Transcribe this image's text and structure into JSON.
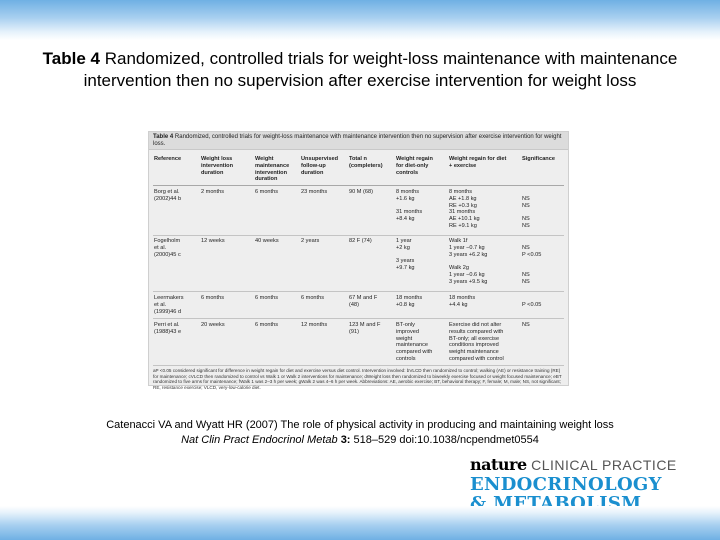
{
  "slide": {
    "title_label": "Table 4",
    "title_text": "Randomized, controlled trials for weight-loss maintenance with maintenance intervention then no supervision after exercise intervention for weight loss"
  },
  "table": {
    "caption_label": "Table 4",
    "caption_text": "Randomized, controlled trials for weight-loss maintenance with maintenance intervention then no supervision after exercise intervention for weight loss.",
    "headers": [
      "Reference",
      "Weight loss\nintervention\nduration",
      "Weight\nmaintenance\nintervention\nduration",
      "Unsupervised\nfollow-up\nduration",
      "Total n\n(completers)",
      "Weight regain\nfor diet-only\ncontrols",
      "Weight regain for diet\n+ exercise",
      "Significance"
    ],
    "rows": [
      {
        "reference": "Borg et al.\n(2002)44 b",
        "wl_duration": "2 months",
        "wm_duration": "6 months",
        "unsup": "23 months",
        "total": "90 M (68)",
        "diet_only": "8 months\n+1.6 kg\n\n31 months\n+8.4 kg",
        "diet_ex": "8 months\nAE +1.8 kg\nRE +0.3 kg\n31 months\nAE +10.1 kg\nRE +9.1 kg",
        "sig": "\nNS\nNS\n\nNS\nNS"
      },
      {
        "reference": "Fogelholm\net al.\n(2000)45 c",
        "wl_duration": "12 weeks",
        "wm_duration": "40 weeks",
        "unsup": "2 years",
        "total": "82 F (74)",
        "diet_only": "1 year\n+2 kg\n\n3 years\n+9.7 kg",
        "diet_ex": "Walk 1f\n1 year −0.7 kg\n3 years +6.2 kg\n\nWalk 2g\n1 year −0.6 kg\n3 years +9.5 kg",
        "sig": "\nNS\nP <0.05\n\n\nNS\nNS"
      },
      {
        "reference": "Leermakers\net al.\n(1999)46 d",
        "wl_duration": "6 months",
        "wm_duration": "6 months",
        "unsup": "6 months",
        "total": "67 M and F\n(48)",
        "diet_only": "18 months\n+0.8 kg",
        "diet_ex": "18 months\n+4.4 kg",
        "sig": "\nP <0.05"
      },
      {
        "reference": "Perri et al.\n(1988)43 e",
        "wl_duration": "20 weeks",
        "wm_duration": "6 months",
        "unsup": "12 months",
        "total": "123 M and F\n(91)",
        "diet_only": "BT-only\nimproved\nweight\nmaintenance\ncompared with\ncontrols",
        "diet_ex": "Exercise did not alter\nresults compared with\nBT-only; all exercise\nconditions improved\nweight maintenance\ncompared with control",
        "sig": "NS"
      }
    ],
    "footnote": "aP <0.05 considered significant for difference in weight regain for diet and exercise versus diet control. Intervention involved: bVLCD then randomized to control; walking (AE) or resistance training (RE) for maintenance; cVLCD then randomized to control vs Walk 1 or Walk 2 interventions for maintenance; dWeight loss then randomized to biweekly exercise focused or weight focused maintenance; eBT randomized to five arms for maintenance; fWalk 1 was 2–3 h per week; gWalk 2 was 4–6 h per week. Abbreviations: AE, aerobic exercise; BT, behavioral therapy; F, female; M, male; NS, not significant; RE, resistance exercise; VLCD, very-low-calorie diet."
  },
  "citation": {
    "line1": "Catenacci VA and Wyatt HR (2007) The role of physical activity in producing and maintaining weight loss",
    "journal": "Nat Clin Pract Endocrinol Metab",
    "volume": "3:",
    "pages": "518–529 doi:10.1038/ncpendmet0554"
  },
  "brand": {
    "nature": "nature",
    "clinical_practice": "CLINICAL PRACTICE",
    "endocrinology": "ENDOCRINOLOGY",
    "metabolism": "& METABOLISM"
  },
  "colors": {
    "band_blue": "#6fb0e4",
    "brand_blue": "#1a8fcf",
    "table_bg": "#eeeeee"
  }
}
